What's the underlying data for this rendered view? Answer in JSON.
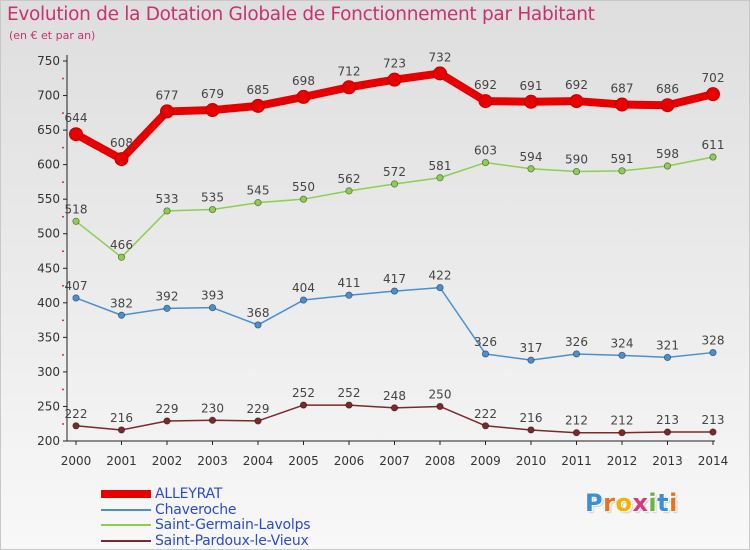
{
  "header": {
    "title": "Evolution de la Dotation Globale de Fonctionnement par Habitant",
    "subtitle": "(en € et par an)"
  },
  "logo": {
    "letters": [
      "P",
      "r",
      "o",
      "x",
      "i",
      "t",
      "i"
    ],
    "colors": [
      "#3b8fd6",
      "#e8731d",
      "#f0b400",
      "#d93a7c",
      "#6cb33f",
      "#3b8fd6",
      "#e8731d"
    ]
  },
  "chart_data": {
    "type": "line",
    "title": "Evolution de la Dotation Globale de Fonctionnement par Habitant",
    "subtitle": "(en € et par an)",
    "x": [
      "2000",
      "2001",
      "2002",
      "2003",
      "2004",
      "2005",
      "2006",
      "2007",
      "2008",
      "2009",
      "2010",
      "2011",
      "2012",
      "2013",
      "2014"
    ],
    "ylim": [
      200,
      750
    ],
    "yticks": [
      200,
      250,
      300,
      350,
      400,
      450,
      500,
      550,
      600,
      650,
      700,
      750
    ],
    "grid": false,
    "legend_position": "bottom-left",
    "series": [
      {
        "name": "ALLEYRAT",
        "color": "#e60000",
        "emphasis": "thick",
        "values": [
          644,
          608,
          677,
          679,
          685,
          698,
          712,
          723,
          732,
          692,
          691,
          692,
          687,
          686,
          702
        ]
      },
      {
        "name": "Chaveroche",
        "color": "#4a90d0",
        "emphasis": "normal",
        "values": [
          407,
          382,
          392,
          393,
          368,
          404,
          411,
          417,
          422,
          326,
          317,
          326,
          324,
          321,
          328
        ]
      },
      {
        "name": "Saint-Germain-Lavolps",
        "color": "#8ccf50",
        "emphasis": "normal",
        "values": [
          518,
          466,
          533,
          535,
          545,
          550,
          562,
          572,
          581,
          603,
          594,
          590,
          591,
          598,
          611
        ]
      },
      {
        "name": "Saint-Pardoux-le-Vieux",
        "color": "#7a2a2a",
        "emphasis": "normal",
        "values": [
          222,
          216,
          229,
          230,
          229,
          252,
          252,
          248,
          250,
          222,
          216,
          212,
          212,
          213,
          213
        ]
      }
    ]
  }
}
